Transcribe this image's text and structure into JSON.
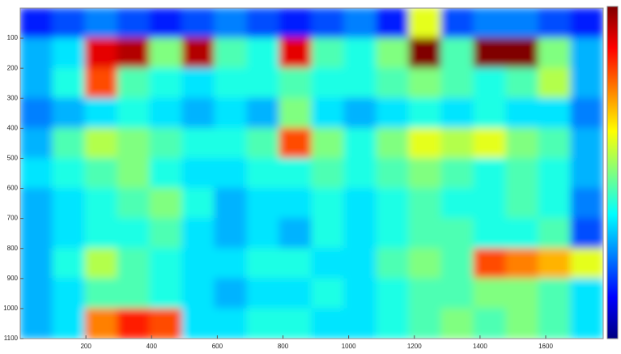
{
  "chart_data": {
    "type": "heatmap",
    "xlim": [
      0,
      1775
    ],
    "ylim": [
      0,
      1100
    ],
    "y_inverted": true,
    "xticks": [
      200,
      400,
      600,
      800,
      1000,
      1200,
      1400,
      1600
    ],
    "yticks": [
      100,
      200,
      300,
      400,
      500,
      600,
      700,
      800,
      900,
      1000,
      1100
    ],
    "zlim": [
      0,
      1
    ],
    "colormap": "jet",
    "z": [
      [
        0.15,
        0.2,
        0.25,
        0.2,
        0.15,
        0.2,
        0.25,
        0.2,
        0.15,
        0.2,
        0.25,
        0.15,
        0.6,
        0.2,
        0.25,
        0.25,
        0.2,
        0.15
      ],
      [
        0.3,
        0.35,
        0.9,
        0.95,
        0.5,
        0.95,
        0.45,
        0.4,
        0.9,
        0.45,
        0.4,
        0.5,
        1.0,
        0.45,
        1.0,
        1.0,
        0.5,
        0.3
      ],
      [
        0.3,
        0.4,
        0.8,
        0.45,
        0.4,
        0.35,
        0.4,
        0.4,
        0.45,
        0.4,
        0.4,
        0.45,
        0.5,
        0.45,
        0.4,
        0.45,
        0.55,
        0.3
      ],
      [
        0.25,
        0.3,
        0.35,
        0.4,
        0.35,
        0.3,
        0.35,
        0.3,
        0.5,
        0.35,
        0.3,
        0.35,
        0.4,
        0.35,
        0.4,
        0.35,
        0.35,
        0.25
      ],
      [
        0.3,
        0.45,
        0.55,
        0.5,
        0.45,
        0.4,
        0.4,
        0.45,
        0.8,
        0.5,
        0.4,
        0.5,
        0.6,
        0.55,
        0.6,
        0.5,
        0.45,
        0.3
      ],
      [
        0.35,
        0.4,
        0.45,
        0.5,
        0.4,
        0.35,
        0.35,
        0.4,
        0.4,
        0.45,
        0.4,
        0.45,
        0.5,
        0.45,
        0.4,
        0.45,
        0.4,
        0.3
      ],
      [
        0.3,
        0.35,
        0.4,
        0.45,
        0.5,
        0.4,
        0.3,
        0.35,
        0.35,
        0.4,
        0.35,
        0.4,
        0.45,
        0.4,
        0.4,
        0.45,
        0.4,
        0.25
      ],
      [
        0.3,
        0.35,
        0.4,
        0.4,
        0.45,
        0.35,
        0.3,
        0.35,
        0.3,
        0.4,
        0.35,
        0.4,
        0.45,
        0.45,
        0.4,
        0.4,
        0.45,
        0.2
      ],
      [
        0.3,
        0.4,
        0.55,
        0.45,
        0.4,
        0.35,
        0.35,
        0.4,
        0.4,
        0.35,
        0.35,
        0.45,
        0.5,
        0.45,
        0.8,
        0.75,
        0.7,
        0.6
      ],
      [
        0.3,
        0.35,
        0.45,
        0.45,
        0.4,
        0.35,
        0.3,
        0.35,
        0.35,
        0.4,
        0.35,
        0.4,
        0.45,
        0.45,
        0.5,
        0.5,
        0.45,
        0.35
      ],
      [
        0.3,
        0.35,
        0.75,
        0.85,
        0.8,
        0.35,
        0.35,
        0.4,
        0.4,
        0.35,
        0.35,
        0.4,
        0.45,
        0.5,
        0.45,
        0.5,
        0.45,
        0.35
      ]
    ]
  }
}
